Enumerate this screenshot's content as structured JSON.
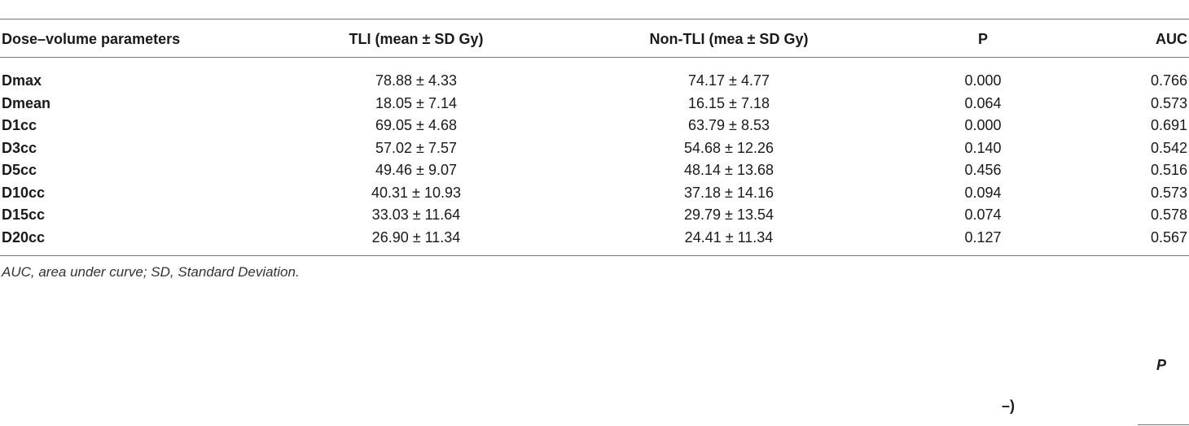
{
  "table": {
    "header": [
      "Dose–volume parameters",
      "TLI (mean ± SD Gy)",
      "Non-TLI (mea ± SD Gy)",
      "P",
      "AUC"
    ],
    "rows": [
      [
        "Dmax",
        "78.88 ± 4.33",
        "74.17 ± 4.77",
        "0.000",
        "0.766"
      ],
      [
        "Dmean",
        "18.05 ± 7.14",
        "16.15 ± 7.18",
        "0.064",
        "0.573"
      ],
      [
        "D1cc",
        "69.05 ± 4.68",
        "63.79 ± 8.53",
        "0.000",
        "0.691"
      ],
      [
        "D3cc",
        "57.02 ± 7.57",
        "54.68 ± 12.26",
        "0.140",
        "0.542"
      ],
      [
        "D5cc",
        "49.46 ± 9.07",
        "48.14 ± 13.68",
        "0.456",
        "0.516"
      ],
      [
        "D10cc",
        "40.31 ± 10.93",
        "37.18 ± 14.16",
        "0.094",
        "0.573"
      ],
      [
        "D15cc",
        "33.03 ± 11.64",
        "29.79 ± 13.54",
        "0.074",
        "0.578"
      ],
      [
        "D20cc",
        "26.90 ± 11.34",
        "24.41 ± 11.34",
        "0.127",
        "0.567"
      ]
    ]
  },
  "footnote": "AUC, area under curve; SD, Standard Deviation.",
  "fragments": [
    "P",
    "–)"
  ]
}
